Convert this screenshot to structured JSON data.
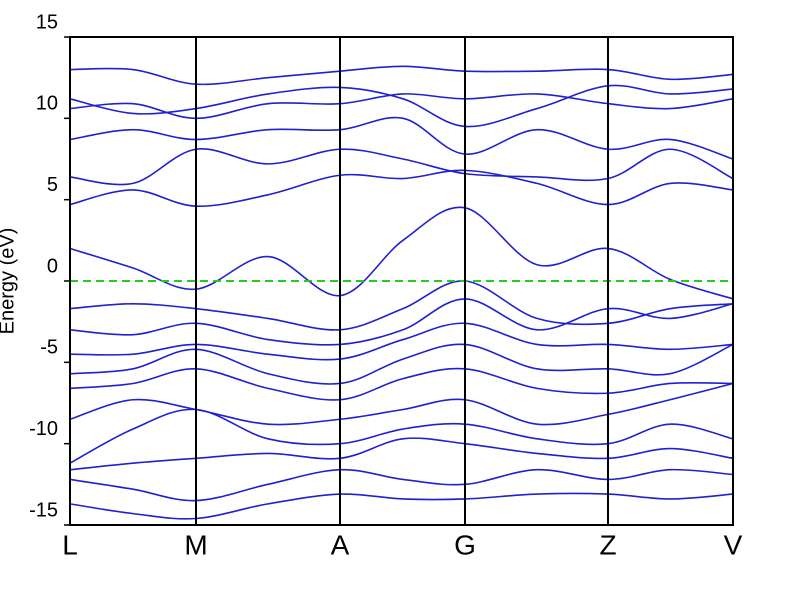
{
  "chart_data": {
    "type": "line",
    "y_label": "Energy (eV)",
    "x": [
      0,
      0.63,
      1.26,
      1.98,
      2.7,
      3.33,
      3.95,
      4.67,
      5.38,
      6.0,
      6.63
    ],
    "xlim": [
      0,
      6.63
    ],
    "xticks": [
      {
        "value": 0,
        "label": "L"
      },
      {
        "value": 1.26,
        "label": "M"
      },
      {
        "value": 2.7,
        "label": "A"
      },
      {
        "value": 3.95,
        "label": "G"
      },
      {
        "value": 5.38,
        "label": "Z"
      },
      {
        "value": 6.63,
        "label": "V"
      }
    ],
    "ylim": [
      -15,
      15
    ],
    "yticks": [
      -15,
      -10,
      -5,
      0,
      5,
      10,
      15
    ],
    "fermi_level": 0,
    "fermi_color": "#22cc22",
    "series": [
      {
        "color": "#2020d0",
        "values": [
          13.0,
          13.0,
          12.1,
          12.5,
          12.9,
          13.2,
          12.9,
          12.9,
          13.0,
          12.4,
          12.7
        ]
      },
      {
        "color": "#2020d0",
        "values": [
          11.2,
          10.3,
          10.6,
          11.5,
          11.9,
          11.2,
          9.5,
          10.6,
          12.0,
          11.5,
          11.8
        ]
      },
      {
        "color": "#2020d0",
        "values": [
          10.6,
          10.9,
          10.0,
          10.9,
          10.9,
          11.5,
          11.2,
          11.5,
          10.9,
          10.6,
          11.2
        ]
      },
      {
        "color": "#2020d0",
        "values": [
          8.7,
          9.3,
          8.7,
          9.3,
          9.3,
          10.0,
          7.8,
          9.3,
          8.1,
          8.7,
          7.5
        ]
      },
      {
        "color": "#2020d0",
        "values": [
          6.4,
          6.0,
          8.1,
          7.2,
          8.1,
          7.5,
          6.6,
          6.4,
          6.3,
          8.1,
          6.3
        ]
      },
      {
        "color": "#2020d0",
        "values": [
          4.7,
          5.6,
          4.6,
          5.3,
          6.5,
          6.3,
          6.8,
          6.0,
          4.7,
          6.0,
          5.6
        ]
      },
      {
        "color": "#2020d0",
        "values": [
          2.0,
          0.8,
          -0.5,
          1.5,
          -0.9,
          2.5,
          4.5,
          1.0,
          2.0,
          0.1,
          -1.1
        ]
      },
      {
        "color": "#2020d0",
        "values": [
          -1.7,
          -1.4,
          -1.7,
          -2.3,
          -3.0,
          -1.7,
          0,
          -2.3,
          -2.6,
          -1.7,
          -1.4
        ]
      },
      {
        "color": "#2020d0",
        "values": [
          -3.0,
          -3.3,
          -2.6,
          -3.6,
          -3.9,
          -3.0,
          -1.1,
          -3.0,
          -1.7,
          -2.3,
          -1.4
        ]
      },
      {
        "color": "#2020d0",
        "values": [
          -4.5,
          -4.5,
          -3.9,
          -4.5,
          -4.8,
          -3.6,
          -2.6,
          -3.9,
          -3.9,
          -4.2,
          -3.9
        ]
      },
      {
        "color": "#2020d0",
        "values": [
          -5.7,
          -5.4,
          -4.2,
          -5.7,
          -6.3,
          -4.8,
          -3.9,
          -5.4,
          -5.4,
          -5.7,
          -3.9
        ]
      },
      {
        "color": "#2020d0",
        "values": [
          -6.6,
          -6.3,
          -5.4,
          -6.6,
          -7.3,
          -6.0,
          -5.4,
          -6.6,
          -6.9,
          -6.3,
          -6.3
        ]
      },
      {
        "color": "#2020d0",
        "values": [
          -8.5,
          -7.3,
          -7.9,
          -8.8,
          -8.5,
          -7.9,
          -7.3,
          -8.8,
          -8.2,
          -7.3,
          -6.3
        ]
      },
      {
        "color": "#2020d0",
        "values": [
          -11.2,
          -9.1,
          -7.9,
          -9.7,
          -10.0,
          -9.1,
          -8.8,
          -9.7,
          -10.0,
          -8.8,
          -9.7
        ]
      },
      {
        "color": "#2020d0",
        "values": [
          -11.6,
          -11.2,
          -10.9,
          -10.6,
          -10.9,
          -9.7,
          -10.0,
          -10.6,
          -10.9,
          -10.3,
          -10.9
        ]
      },
      {
        "color": "#2020d0",
        "values": [
          -12.2,
          -12.8,
          -13.5,
          -12.5,
          -11.6,
          -12.2,
          -12.5,
          -11.6,
          -12.2,
          -11.6,
          -11.9
        ]
      },
      {
        "color": "#2020d0",
        "values": [
          -13.7,
          -14.3,
          -14.6,
          -13.7,
          -13.1,
          -13.4,
          -13.4,
          -13.1,
          -13.1,
          -13.4,
          -13.1
        ]
      }
    ]
  }
}
